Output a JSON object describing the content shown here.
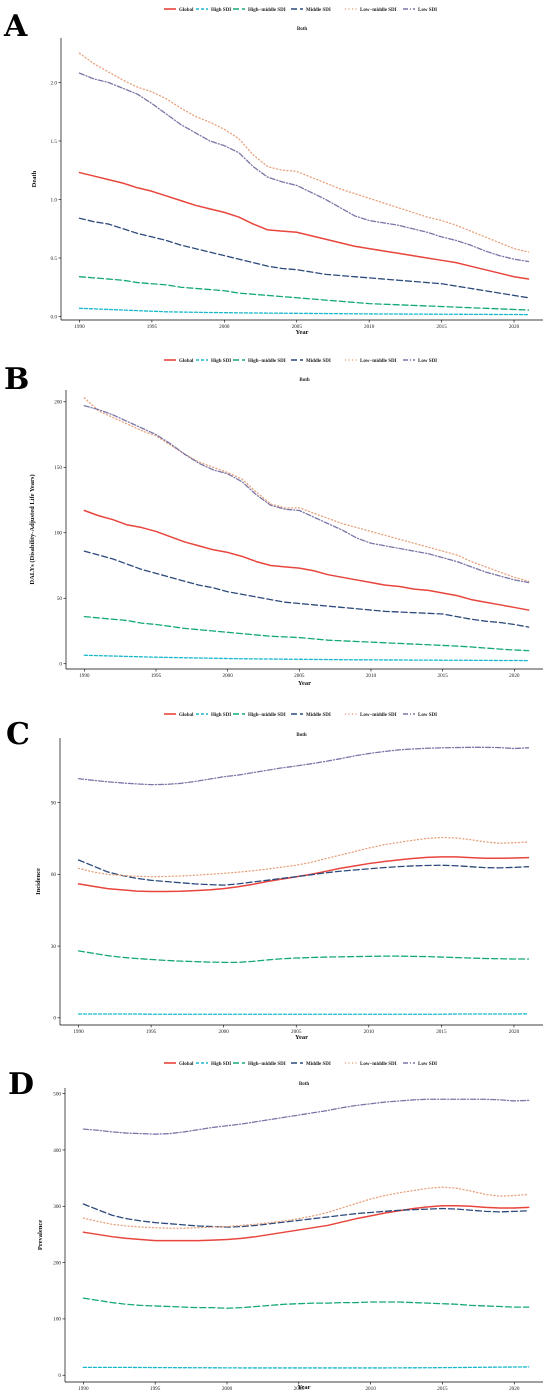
{
  "legend_labels": [
    "Global",
    "High SDI",
    "High−middle SDI",
    "Middle SDI",
    "Low−middle SDI",
    "Low SDI"
  ],
  "series_colors": {
    "Global": "#e8453c",
    "High SDI": "#18b8cc",
    "High−middle SDI": "#13a87c",
    "Middle SDI": "#2c4a7c",
    "Low−middle SDI": "#e8a07a",
    "Low SDI": "#7a77a8"
  },
  "chart_data": [
    {
      "panel": "A",
      "type": "line",
      "title": "Both",
      "xlabel": "Year",
      "ylabel": "Death",
      "x": [
        1990,
        1991,
        1992,
        1993,
        1994,
        1995,
        1996,
        1997,
        1998,
        1999,
        2000,
        2001,
        2002,
        2003,
        2004,
        2005,
        2006,
        2007,
        2008,
        2009,
        2010,
        2011,
        2012,
        2013,
        2014,
        2015,
        2016,
        2017,
        2018,
        2019,
        2020,
        2021
      ],
      "xticks": [
        1990,
        1995,
        2000,
        2005,
        2010,
        2015,
        2020
      ],
      "yticks": [
        0.0,
        0.5,
        1.0,
        1.5,
        2.0
      ],
      "ytick_labels": [
        "0.0",
        "0.5",
        "1.0",
        "1.5",
        "2.0"
      ],
      "ylim": [
        -0.03,
        2.38
      ],
      "series": [
        {
          "name": "Global",
          "values": [
            1.23,
            1.2,
            1.17,
            1.14,
            1.1,
            1.07,
            1.03,
            0.99,
            0.95,
            0.92,
            0.89,
            0.85,
            0.79,
            0.74,
            0.73,
            0.72,
            0.69,
            0.66,
            0.63,
            0.6,
            0.58,
            0.56,
            0.54,
            0.52,
            0.5,
            0.48,
            0.46,
            0.43,
            0.4,
            0.37,
            0.34,
            0.32
          ]
        },
        {
          "name": "High SDI",
          "values": [
            0.07,
            0.065,
            0.06,
            0.055,
            0.05,
            0.045,
            0.04,
            0.038,
            0.036,
            0.034,
            0.033,
            0.031,
            0.03,
            0.029,
            0.028,
            0.027,
            0.026,
            0.025,
            0.024,
            0.023,
            0.022,
            0.021,
            0.021,
            0.02,
            0.02,
            0.019,
            0.019,
            0.018,
            0.018,
            0.017,
            0.017,
            0.016
          ]
        },
        {
          "name": "High−middle SDI",
          "values": [
            0.34,
            0.33,
            0.32,
            0.31,
            0.29,
            0.28,
            0.27,
            0.25,
            0.24,
            0.23,
            0.22,
            0.2,
            0.19,
            0.18,
            0.17,
            0.16,
            0.15,
            0.14,
            0.13,
            0.12,
            0.11,
            0.105,
            0.1,
            0.095,
            0.09,
            0.085,
            0.08,
            0.075,
            0.07,
            0.065,
            0.06,
            0.055
          ]
        },
        {
          "name": "Middle SDI",
          "values": [
            0.84,
            0.81,
            0.79,
            0.75,
            0.71,
            0.68,
            0.65,
            0.61,
            0.58,
            0.55,
            0.52,
            0.49,
            0.46,
            0.43,
            0.41,
            0.4,
            0.38,
            0.36,
            0.35,
            0.34,
            0.33,
            0.32,
            0.31,
            0.3,
            0.29,
            0.28,
            0.26,
            0.24,
            0.22,
            0.2,
            0.18,
            0.16
          ]
        },
        {
          "name": "Low−middle SDI",
          "values": [
            2.25,
            2.16,
            2.09,
            2.02,
            1.96,
            1.92,
            1.86,
            1.78,
            1.71,
            1.66,
            1.6,
            1.52,
            1.38,
            1.28,
            1.25,
            1.24,
            1.19,
            1.14,
            1.09,
            1.05,
            1.01,
            0.97,
            0.93,
            0.89,
            0.85,
            0.82,
            0.78,
            0.73,
            0.68,
            0.63,
            0.58,
            0.55
          ]
        },
        {
          "name": "Low SDI",
          "values": [
            2.08,
            2.03,
            2.0,
            1.95,
            1.9,
            1.82,
            1.73,
            1.64,
            1.57,
            1.5,
            1.46,
            1.4,
            1.28,
            1.19,
            1.15,
            1.12,
            1.06,
            1.0,
            0.93,
            0.86,
            0.82,
            0.8,
            0.78,
            0.75,
            0.72,
            0.68,
            0.65,
            0.61,
            0.56,
            0.52,
            0.49,
            0.47
          ]
        }
      ]
    },
    {
      "panel": "B",
      "type": "line",
      "title": "Both",
      "xlabel": "Year",
      "ylabel": "DALYs (Disability-Adjusted Life Years)",
      "x": [
        1990,
        1991,
        1992,
        1993,
        1994,
        1995,
        1996,
        1997,
        1998,
        1999,
        2000,
        2001,
        2002,
        2003,
        2004,
        2005,
        2006,
        2007,
        2008,
        2009,
        2010,
        2011,
        2012,
        2013,
        2014,
        2015,
        2016,
        2017,
        2018,
        2019,
        2020,
        2021
      ],
      "xticks": [
        1990,
        1995,
        2000,
        2005,
        2010,
        2015,
        2020
      ],
      "yticks": [
        0,
        50,
        100,
        150,
        200
      ],
      "ytick_labels": [
        "0",
        "50",
        "100",
        "150",
        "200"
      ],
      "ylim": [
        -4,
        209
      ],
      "series": [
        {
          "name": "Global",
          "values": [
            117,
            113,
            110,
            106,
            104,
            101,
            97,
            93,
            90,
            87,
            85,
            82,
            78,
            75,
            74,
            73,
            71,
            68,
            66,
            64,
            62,
            60,
            59,
            57,
            56,
            54,
            52,
            49,
            47,
            45,
            43,
            41
          ]
        },
        {
          "name": "High SDI",
          "values": [
            6.5,
            6.2,
            5.9,
            5.6,
            5.3,
            5.0,
            4.8,
            4.6,
            4.4,
            4.2,
            4.0,
            3.8,
            3.7,
            3.6,
            3.5,
            3.4,
            3.3,
            3.2,
            3.1,
            3.0,
            3.0,
            2.9,
            2.9,
            2.8,
            2.8,
            2.7,
            2.7,
            2.6,
            2.6,
            2.5,
            2.5,
            2.4
          ]
        },
        {
          "name": "High−middle SDI",
          "values": [
            36,
            35,
            34,
            33,
            31,
            30,
            28.5,
            27,
            26,
            25,
            24,
            23,
            22,
            21,
            20.5,
            20,
            19,
            18,
            17.5,
            17,
            16.5,
            16,
            15.5,
            15,
            14.5,
            14,
            13.5,
            12.8,
            12,
            11.2,
            10.5,
            10
          ]
        },
        {
          "name": "Middle SDI",
          "values": [
            86,
            83,
            80,
            76,
            72,
            69,
            66,
            63,
            60,
            58,
            55,
            53,
            51,
            49,
            47,
            46,
            45,
            44,
            43,
            42,
            41,
            40,
            39.5,
            39,
            38.5,
            38,
            36,
            34,
            32.5,
            31.5,
            30,
            28
          ]
        },
        {
          "name": "Low−middle SDI",
          "values": [
            203,
            193,
            188,
            183,
            178,
            174,
            167,
            160,
            154,
            150,
            146,
            141,
            131,
            122,
            119,
            119,
            115,
            111,
            107,
            104,
            101,
            98,
            95,
            92,
            89,
            86,
            83,
            78,
            74,
            70,
            66,
            63
          ]
        },
        {
          "name": "Low SDI",
          "values": [
            197,
            194,
            190,
            185,
            180,
            175,
            168,
            160,
            153,
            148,
            145,
            139,
            129,
            121,
            118,
            117,
            112,
            107,
            102,
            96,
            92,
            90,
            88,
            86,
            84,
            81,
            78,
            74,
            70,
            67,
            64,
            62
          ]
        }
      ]
    },
    {
      "panel": "C",
      "type": "line",
      "title": "Both",
      "xlabel": "Year",
      "ylabel": "Incidence",
      "x": [
        1990,
        1991,
        1992,
        1993,
        1994,
        1995,
        1996,
        1997,
        1998,
        1999,
        2000,
        2001,
        2002,
        2003,
        2004,
        2005,
        2006,
        2007,
        2008,
        2009,
        2010,
        2011,
        2012,
        2013,
        2014,
        2015,
        2016,
        2017,
        2018,
        2019,
        2020,
        2021
      ],
      "xticks": [
        1990,
        1995,
        2000,
        2005,
        2010,
        2015,
        2020
      ],
      "yticks": [
        0,
        30,
        60,
        90
      ],
      "ytick_labels": [
        "0",
        "30",
        "60",
        "90"
      ],
      "ylim": [
        -3,
        117
      ],
      "series": [
        {
          "name": "Global",
          "values": [
            56,
            55,
            54,
            53.5,
            53,
            52.8,
            52.8,
            52.9,
            53.2,
            53.5,
            54,
            54.8,
            55.8,
            57,
            58,
            59,
            60,
            61.2,
            62.5,
            63.5,
            64.5,
            65.3,
            66,
            66.6,
            67.1,
            67.3,
            67.3,
            67,
            66.7,
            66.7,
            66.8,
            67
          ]
        },
        {
          "name": "High SDI",
          "values": [
            1.6,
            1.6,
            1.6,
            1.6,
            1.6,
            1.5,
            1.5,
            1.5,
            1.5,
            1.5,
            1.5,
            1.5,
            1.5,
            1.5,
            1.5,
            1.5,
            1.5,
            1.5,
            1.5,
            1.5,
            1.5,
            1.5,
            1.5,
            1.5,
            1.5,
            1.5,
            1.6,
            1.6,
            1.6,
            1.6,
            1.6,
            1.7
          ]
        },
        {
          "name": "High−middle SDI",
          "values": [
            28,
            27,
            26,
            25.3,
            24.8,
            24.4,
            24,
            23.7,
            23.5,
            23.3,
            23.2,
            23.2,
            23.6,
            24.2,
            24.7,
            25,
            25.2,
            25.4,
            25.5,
            25.6,
            25.7,
            25.8,
            25.8,
            25.7,
            25.6,
            25.4,
            25.2,
            25,
            24.8,
            24.7,
            24.6,
            24.6
          ]
        },
        {
          "name": "Middle SDI",
          "values": [
            66,
            63.5,
            61,
            59.5,
            58.3,
            57.5,
            57,
            56.5,
            56,
            55.7,
            55.5,
            56,
            56.8,
            57.5,
            58.3,
            59,
            59.8,
            60.6,
            61.3,
            61.8,
            62.3,
            62.8,
            63.2,
            63.5,
            63.7,
            63.8,
            63.6,
            63.2,
            62.8,
            62.7,
            62.9,
            63.2
          ]
        },
        {
          "name": "Low−middle SDI",
          "values": [
            62.5,
            61,
            60,
            59.5,
            59.2,
            59,
            59.1,
            59.3,
            59.6,
            60,
            60.4,
            60.9,
            61.5,
            62.2,
            63,
            63.8,
            65,
            66.5,
            68,
            69.5,
            71,
            72.3,
            73.3,
            74.2,
            75,
            75.4,
            75.2,
            74.5,
            73.6,
            73,
            73.2,
            73.5
          ]
        },
        {
          "name": "Low SDI",
          "values": [
            100,
            99.3,
            98.7,
            98.2,
            97.8,
            97.5,
            97.6,
            98,
            98.8,
            99.8,
            100.8,
            101.5,
            102.5,
            103.5,
            104.5,
            105.3,
            106.2,
            107.2,
            108.3,
            109.5,
            110.5,
            111.3,
            112,
            112.4,
            112.7,
            112.9,
            113,
            113.1,
            113.1,
            113,
            112.6,
            112.9
          ]
        }
      ]
    },
    {
      "panel": "D",
      "type": "line",
      "title": "Both",
      "xlabel": "Year",
      "ylabel": "Prevalence",
      "x": [
        1990,
        1991,
        1992,
        1993,
        1994,
        1995,
        1996,
        1997,
        1998,
        1999,
        2000,
        2001,
        2002,
        2003,
        2004,
        2005,
        2006,
        2007,
        2008,
        2009,
        2010,
        2011,
        2012,
        2013,
        2014,
        2015,
        2016,
        2017,
        2018,
        2019,
        2020,
        2021
      ],
      "xticks": [
        1990,
        1995,
        2000,
        2005,
        2010,
        2015,
        2020
      ],
      "yticks": [
        0,
        100,
        200,
        300,
        400,
        500
      ],
      "ytick_labels": [
        "0",
        "100",
        "200",
        "300",
        "400",
        "500"
      ],
      "ylim": [
        -12,
        510
      ],
      "series": [
        {
          "name": "Global",
          "values": [
            254,
            250,
            246,
            243,
            241,
            239,
            239,
            239,
            239,
            240,
            241,
            243,
            246,
            250,
            254,
            258,
            262,
            266,
            272,
            278,
            283,
            288,
            292,
            296,
            299,
            301,
            301,
            300,
            298,
            297,
            297,
            298
          ]
        },
        {
          "name": "High SDI",
          "values": [
            14,
            14,
            14,
            14,
            13.8,
            13.6,
            13.5,
            13.4,
            13.3,
            13.2,
            13.1,
            13,
            13,
            13,
            13,
            13,
            13,
            13,
            13,
            13,
            13,
            13,
            13.1,
            13.2,
            13.3,
            13.5,
            13.7,
            14,
            14.2,
            14.4,
            14.6,
            14.8
          ]
        },
        {
          "name": "High−middle SDI",
          "values": [
            137,
            133,
            129,
            126,
            124,
            123,
            122,
            121,
            120,
            120,
            119,
            120,
            122,
            124,
            126,
            127,
            128,
            128,
            129,
            129,
            130,
            130,
            130,
            129,
            128,
            127,
            126,
            124,
            123,
            122,
            121,
            121
          ]
        },
        {
          "name": "Middle SDI",
          "values": [
            304,
            294,
            284,
            278,
            274,
            271,
            269,
            267,
            265,
            264,
            263,
            264,
            266,
            269,
            272,
            275,
            278,
            281,
            284,
            287,
            289,
            291,
            293,
            294,
            295,
            296,
            295,
            293,
            291,
            290,
            291,
            292
          ]
        },
        {
          "name": "Low−middle SDI",
          "values": [
            279,
            273,
            268,
            265,
            263,
            262,
            261,
            261,
            262,
            263,
            264,
            266,
            268,
            271,
            274,
            278,
            283,
            289,
            297,
            305,
            313,
            319,
            324,
            328,
            332,
            334,
            332,
            327,
            321,
            318,
            319,
            321
          ]
        },
        {
          "name": "Low SDI",
          "values": [
            437,
            435,
            432,
            430,
            429,
            428,
            429,
            432,
            436,
            440,
            443,
            446,
            450,
            454,
            458,
            462,
            466,
            470,
            475,
            479,
            482,
            485,
            487,
            489,
            490,
            490,
            490,
            490,
            490,
            489,
            487,
            488
          ]
        }
      ]
    }
  ]
}
